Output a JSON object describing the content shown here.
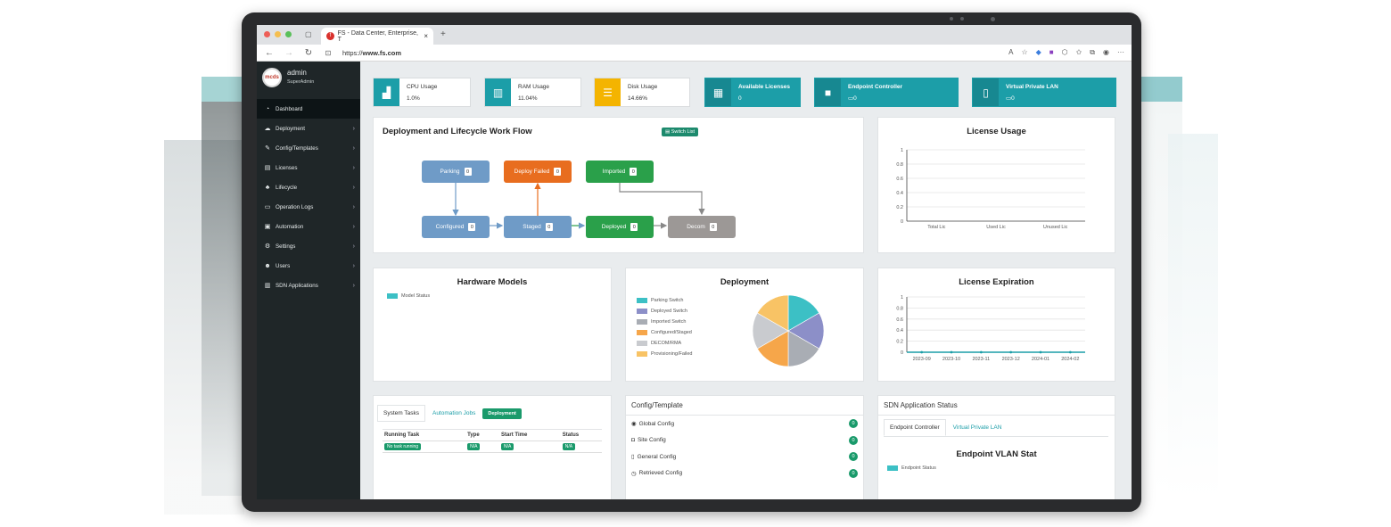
{
  "browser": {
    "tab_title": "FS - Data Center, Enterprise, T",
    "url_prefix": "https://",
    "url_domain": "www.fs.com",
    "colors": {
      "close": "#ee5f57",
      "minimize": "#f5be4f",
      "maximize": "#5ac05a"
    }
  },
  "user": {
    "name": "admin",
    "role": "SuperAdmin",
    "logo": "mcds"
  },
  "sidebar": {
    "items": [
      {
        "label": "Dashboard",
        "icon": "dashboard-icon",
        "glyph": "◔",
        "active": true
      },
      {
        "label": "Deployment",
        "icon": "cloud-icon",
        "glyph": "☁"
      },
      {
        "label": "Config/Templates",
        "icon": "edit-icon",
        "glyph": "✎"
      },
      {
        "label": "Licenses",
        "icon": "id-card-icon",
        "glyph": "▤"
      },
      {
        "label": "Lifecycle",
        "icon": "sitemap-icon",
        "glyph": "♣"
      },
      {
        "label": "Operation Logs",
        "icon": "monitor-icon",
        "glyph": "▭"
      },
      {
        "label": "Automation",
        "icon": "robot-icon",
        "glyph": "▣"
      },
      {
        "label": "Settings",
        "icon": "cogs-icon",
        "glyph": "⚙"
      },
      {
        "label": "Users",
        "icon": "users-icon",
        "glyph": "☻"
      },
      {
        "label": "SDN Applications",
        "icon": "book-icon",
        "glyph": "▥"
      }
    ]
  },
  "stats": [
    {
      "label": "CPU Usage",
      "value": "1.0%",
      "icon": "area-chart-icon",
      "color": "#1c9ea8"
    },
    {
      "label": "RAM Usage",
      "value": "11.04%",
      "icon": "memory-icon",
      "color": "#1c9ea8"
    },
    {
      "label": "Disk Usage",
      "value": "14.66%",
      "icon": "database-icon",
      "color": "#f4b400"
    },
    {
      "label": "Available Licenses",
      "value": "0",
      "icon": "license-icon"
    },
    {
      "label": "Endpoint Controller",
      "value": "0",
      "icon": "video-icon"
    },
    {
      "label": "Virtual Private LAN",
      "value": "0",
      "icon": "server-icon"
    }
  ],
  "workflow": {
    "title": "Deployment and Lifecycle Work Flow",
    "switch_list": "Switch List",
    "nodes": [
      {
        "key": "parking",
        "label": "Parking",
        "count": "0",
        "color": "#6f9bc7"
      },
      {
        "key": "deploy_failed",
        "label": "Deploy Failed",
        "count": "0",
        "color": "#e86d1f"
      },
      {
        "key": "imported",
        "label": "Imported",
        "count": "0",
        "color": "#2aa04a"
      },
      {
        "key": "configured",
        "label": "Configured",
        "count": "0",
        "color": "#6f9bc7"
      },
      {
        "key": "staged",
        "label": "Staged",
        "count": "0",
        "color": "#6f9bc7"
      },
      {
        "key": "deployed",
        "label": "Deployed",
        "count": "0",
        "color": "#2aa04a"
      },
      {
        "key": "decom",
        "label": "Decom",
        "count": "0",
        "color": "#9c9896"
      }
    ]
  },
  "license_usage": {
    "title": "License Usage",
    "chart_data": {
      "type": "bar",
      "categories": [
        "Total Lic",
        "Used Lic",
        "Unused Lic"
      ],
      "values": [
        0,
        0,
        0
      ],
      "ylim": [
        0,
        1
      ],
      "yticks": [
        "0",
        "0.2",
        "0.4",
        "0.6",
        "0.8",
        "1"
      ]
    }
  },
  "hardware": {
    "title": "Hardware Models",
    "legend": "Model Status",
    "legend_color": "#3cc0c5"
  },
  "deployment": {
    "title": "Deployment",
    "chart_data": {
      "type": "pie",
      "categories": [
        "Parking Switch",
        "Deployed Switch",
        "Imported Switch",
        "Configured/Staged",
        "DECOM/RMA",
        "Provisioning/Failed"
      ],
      "values": [
        1,
        1,
        1,
        1,
        1,
        1
      ],
      "colors": [
        "#3cc0c5",
        "#8c8fc8",
        "#a9adb4",
        "#f6a64a",
        "#c9cbcf",
        "#f8c365"
      ]
    }
  },
  "license_expiration": {
    "title": "License Expiration",
    "chart_data": {
      "type": "line",
      "x": [
        "2023-09",
        "2023-10",
        "2023-11",
        "2023-12",
        "2024-01",
        "2024-02"
      ],
      "values": [
        0,
        0,
        0,
        0,
        0,
        0
      ],
      "ylim": [
        0,
        1
      ],
      "yticks": [
        "0",
        "0.2",
        "0.4",
        "0.6",
        "0.8",
        "1"
      ]
    }
  },
  "tasks": {
    "tabs": [
      "System Tasks",
      "Automation Jobs",
      "Deployment"
    ],
    "columns": [
      "Running Task",
      "Type",
      "Start Time",
      "Status"
    ],
    "row": [
      "No task running",
      "N/A",
      "N/A",
      "N/A"
    ]
  },
  "config": {
    "title": "Config/Template",
    "items": [
      {
        "label": "Global Config",
        "glyph": "◉",
        "count": "0"
      },
      {
        "label": "Site Config",
        "glyph": "◘",
        "count": "0"
      },
      {
        "label": "General Config",
        "glyph": "▯",
        "count": "0"
      },
      {
        "label": "Retrieved Config",
        "glyph": "◷",
        "count": "0"
      }
    ]
  },
  "sdn": {
    "title": "SDN Application Status",
    "tabs": [
      "Endpoint Controller",
      "Virtual Private LAN"
    ],
    "stat_title": "Endpoint VLAN Stat",
    "legend": "Endpoint Status"
  }
}
